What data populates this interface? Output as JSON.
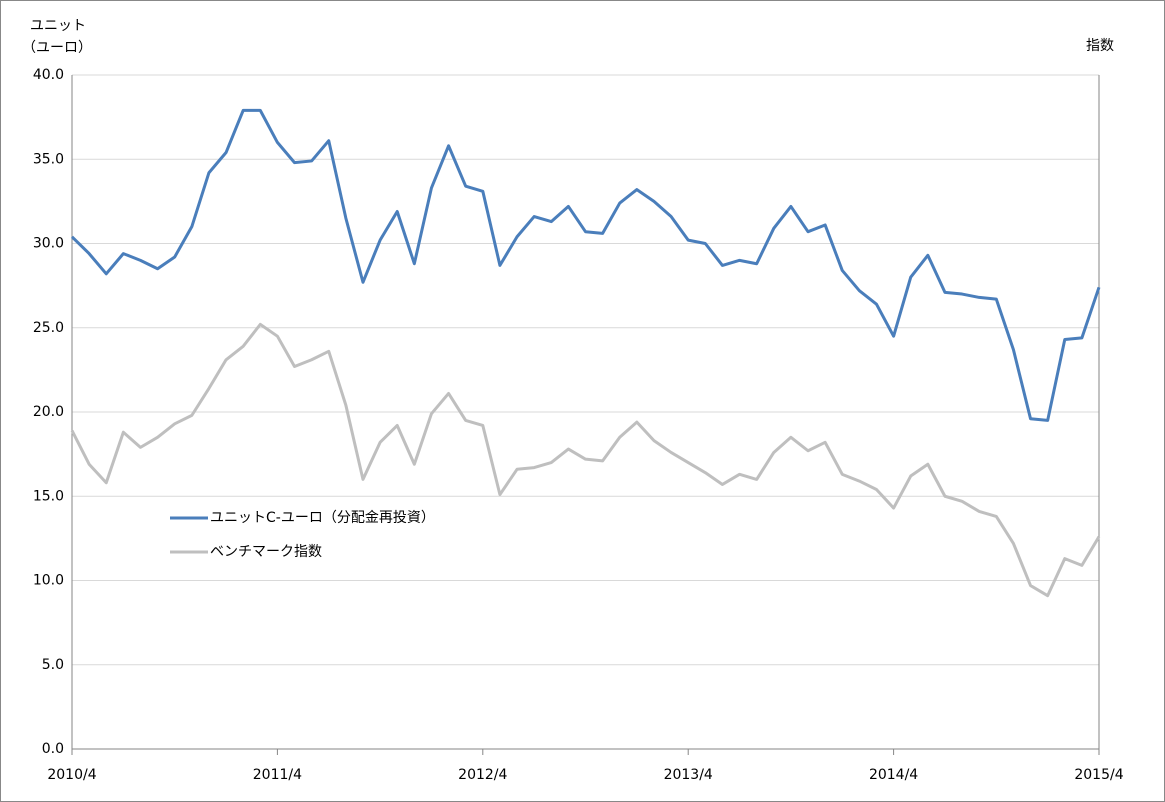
{
  "chart_data": {
    "type": "line",
    "y_label": [
      "ユニット",
      "（ユーロ）"
    ],
    "y2_label": "指数",
    "categories": [
      "2010/4",
      null,
      null,
      null,
      null,
      null,
      null,
      null,
      null,
      null,
      null,
      null,
      "2011/4",
      null,
      null,
      null,
      null,
      null,
      null,
      null,
      null,
      null,
      null,
      null,
      "2012/4",
      null,
      null,
      null,
      null,
      null,
      null,
      null,
      null,
      null,
      null,
      null,
      "2013/4",
      null,
      null,
      null,
      null,
      null,
      null,
      null,
      null,
      null,
      null,
      null,
      "2014/4",
      null,
      null,
      null,
      null,
      null,
      null,
      null,
      null,
      null,
      null,
      null,
      "2015/4"
    ],
    "series": [
      {
        "name": "ユニットC-ユーロ（分配金再投資）",
        "color": "#4a7ebb",
        "values": [
          30.4,
          29.4,
          28.2,
          29.4,
          29.0,
          28.5,
          29.2,
          31.0,
          34.2,
          35.4,
          37.9,
          37.9,
          36.0,
          34.8,
          34.9,
          36.1,
          31.5,
          27.7,
          30.2,
          31.9,
          28.8,
          33.3,
          35.8,
          33.4,
          33.1,
          28.7,
          30.4,
          31.6,
          31.3,
          32.2,
          30.7,
          30.6,
          32.4,
          33.2,
          32.5,
          31.6,
          30.2,
          30.0,
          28.7,
          29.0,
          28.8,
          30.9,
          32.2,
          30.7,
          31.1,
          28.4,
          27.2,
          26.4,
          24.5,
          28.0,
          29.3,
          27.1,
          27.0,
          26.8,
          26.7,
          23.7,
          19.6,
          19.5,
          24.3,
          24.4,
          27.4
        ]
      },
      {
        "name": "ベンチマーク指数",
        "color": "#bfbfbf",
        "values": [
          18.9,
          16.9,
          15.8,
          18.8,
          17.9,
          18.5,
          19.3,
          19.8,
          21.4,
          23.1,
          23.9,
          25.2,
          24.5,
          22.7,
          23.1,
          23.6,
          20.4,
          16.0,
          18.2,
          19.2,
          16.9,
          19.9,
          21.1,
          19.5,
          19.2,
          15.1,
          16.6,
          16.7,
          17.0,
          17.8,
          17.2,
          17.1,
          18.5,
          19.4,
          18.3,
          17.6,
          17.0,
          16.4,
          15.7,
          16.3,
          16.0,
          17.6,
          18.5,
          17.7,
          18.2,
          16.3,
          15.9,
          15.4,
          14.3,
          16.2,
          16.9,
          15.0,
          14.7,
          14.1,
          13.8,
          12.2,
          9.7,
          9.1,
          11.3,
          10.9,
          12.6
        ]
      }
    ],
    "ylim": [
      0,
      40
    ],
    "yticks": [
      {
        "value": 0,
        "label": "0.0"
      },
      {
        "value": 5,
        "label": "5.0"
      },
      {
        "value": 10,
        "label": "10.0"
      },
      {
        "value": 15,
        "label": "15.0"
      },
      {
        "value": 20,
        "label": "20.0"
      },
      {
        "value": 25,
        "label": "25.0"
      },
      {
        "value": 30,
        "label": "30.0"
      },
      {
        "value": 35,
        "label": "35.0"
      },
      {
        "value": 40,
        "label": "40.0"
      }
    ],
    "grid": true,
    "legend": "left"
  }
}
